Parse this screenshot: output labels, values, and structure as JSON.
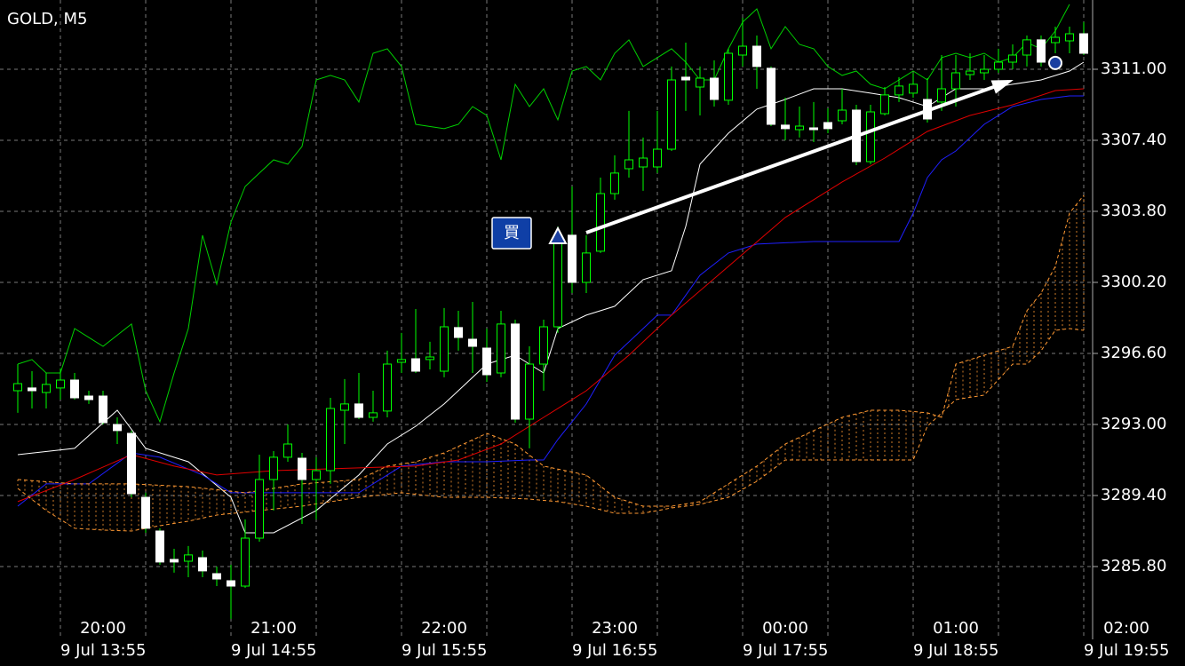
{
  "chart_data": {
    "type": "candlestick",
    "title": "GOLD, M5",
    "ylim": [
      3282.11,
      3314.51
    ],
    "yticks": [
      {
        "value": 3311.0,
        "label": "3311.00"
      },
      {
        "value": 3307.4,
        "label": "3307.40"
      },
      {
        "value": 3303.8,
        "label": "3303.80"
      },
      {
        "value": 3300.2,
        "label": "3300.20"
      },
      {
        "value": 3296.6,
        "label": "3296.60"
      },
      {
        "value": 3293.0,
        "label": "3293.00"
      },
      {
        "value": 3289.4,
        "label": "3289.40"
      },
      {
        "value": 3285.8,
        "label": "3285.80"
      }
    ],
    "xlim": [
      -1.25,
      75.625
    ],
    "xticks": [
      {
        "value": 3,
        "label": "9 Jul 13:55"
      },
      {
        "value": 9,
        "label": null
      },
      {
        "value": 15,
        "label": "9 Jul 14:55"
      },
      {
        "value": 21,
        "label": null
      },
      {
        "value": 27,
        "label": "9 Jul 15:55"
      },
      {
        "value": 33,
        "label": null
      },
      {
        "value": 39,
        "label": "9 Jul 16:55"
      },
      {
        "value": 45,
        "label": null
      },
      {
        "value": 51,
        "label": "9 Jul 17:55"
      },
      {
        "value": 57,
        "label": null
      },
      {
        "value": 63,
        "label": "9 Jul 18:55"
      },
      {
        "value": 69,
        "label": null
      },
      {
        "value": 75,
        "label": "9 Jul 19:55"
      }
    ],
    "x2ticks": [
      {
        "value": 6,
        "label": "20:00"
      },
      {
        "value": 18,
        "label": "21:00"
      },
      {
        "value": 30,
        "label": "22:00"
      },
      {
        "value": 42,
        "label": "23:00"
      },
      {
        "value": 54,
        "label": "00:00"
      },
      {
        "value": 66,
        "label": "01:00"
      },
      {
        "value": 78,
        "label": "02:00"
      }
    ],
    "grid": true,
    "up_color": "#000000",
    "down_color": "#ffffff",
    "wick_color": "#00ff00",
    "candles": {
      "open": [
        3294.71,
        3294.85,
        3294.62,
        3294.85,
        3295.25,
        3294.44,
        3294.44,
        3293.0,
        3292.55,
        3289.31,
        3287.6,
        3286.16,
        3286.07,
        3286.25,
        3285.44,
        3285.08,
        3284.81,
        3287.24,
        3290.21,
        3291.34,
        3291.29,
        3290.21,
        3290.66,
        3293.72,
        3294.04,
        3293.36,
        3293.68,
        3296.15,
        3296.33,
        3296.29,
        3295.7,
        3297.91,
        3297.32,
        3296.87,
        3295.61,
        3298.09,
        3293.27,
        3296.06,
        3297.95,
        3302.59,
        3300.2,
        3301.78,
        3304.7,
        3305.96,
        3306.05,
        3306.05,
        3306.95,
        3310.6,
        3310.1,
        3310.55,
        3309.43,
        3311.72,
        3312.17,
        3311.05,
        3308.17,
        3307.94,
        3308.03,
        3308.3,
        3308.39,
        3308.93,
        3306.32,
        3308.75,
        3309.7,
        3309.79,
        3309.47,
        3309.34,
        3310.01,
        3310.73,
        3310.82,
        3311.0,
        3311.36,
        3311.72,
        3312.49,
        3312.35,
        3312.44,
        3312.8
      ],
      "high": [
        3296.06,
        3295.7,
        3295.61,
        3295.84,
        3295.61,
        3294.71,
        3294.71,
        3293.36,
        3292.69,
        3289.54,
        3287.74,
        3286.7,
        3286.84,
        3286.61,
        3285.8,
        3285.89,
        3288.19,
        3291.47,
        3291.65,
        3293.0,
        3291.56,
        3291.34,
        3294.35,
        3295.3,
        3295.61,
        3294.71,
        3296.74,
        3297.64,
        3298.85,
        3297.19,
        3298.9,
        3298.76,
        3299.21,
        3297.86,
        3298.76,
        3298.31,
        3296.96,
        3298.31,
        3303.04,
        3305.06,
        3302.59,
        3305.51,
        3306.64,
        3308.89,
        3307.54,
        3308.89,
        3311.14,
        3312.35,
        3311.14,
        3311.45,
        3312.04,
        3313.61,
        3312.71,
        3311.14,
        3309.56,
        3309.11,
        3309.34,
        3309.02,
        3310.01,
        3309.2,
        3309.2,
        3310.1,
        3310.6,
        3310.82,
        3310.55,
        3311.72,
        3311.72,
        3311.81,
        3311.72,
        3312.04,
        3312.26,
        3312.71,
        3312.71,
        3313.16,
        3313.16,
        3313.39
      ],
      "low": [
        3293.59,
        3293.81,
        3293.81,
        3294.26,
        3294.26,
        3294.04,
        3293.0,
        3292.01,
        3289.31,
        3287.51,
        3285.89,
        3285.49,
        3285.26,
        3285.26,
        3284.81,
        3283.15,
        3284.72,
        3287.06,
        3288.64,
        3291.11,
        3287.96,
        3288.19,
        3289.99,
        3292.01,
        3293.27,
        3293.14,
        3293.36,
        3295.61,
        3295.61,
        3295.79,
        3295.39,
        3296.74,
        3295.61,
        3295.16,
        3295.39,
        3293.09,
        3291.79,
        3294.71,
        3297.64,
        3299.66,
        3299.66,
        3301.69,
        3304.39,
        3305.51,
        3304.84,
        3305.74,
        3306.86,
        3308.89,
        3308.66,
        3309.11,
        3309.2,
        3311.14,
        3310.01,
        3308.12,
        3307.4,
        3307.54,
        3307.31,
        3307.76,
        3308.21,
        3306.14,
        3306.19,
        3308.66,
        3309.34,
        3309.56,
        3308.3,
        3308.89,
        3309.11,
        3310.46,
        3310.46,
        3310.82,
        3311.0,
        3311.14,
        3311.14,
        3311.81,
        3311.81,
        3311.72
      ],
      "close": [
        3295.07,
        3294.71,
        3295.03,
        3295.25,
        3294.35,
        3294.26,
        3293.09,
        3292.69,
        3289.49,
        3287.74,
        3286.03,
        3286.03,
        3286.39,
        3285.58,
        3285.17,
        3284.81,
        3287.24,
        3290.21,
        3291.34,
        3292.01,
        3290.21,
        3290.66,
        3293.81,
        3294.04,
        3293.36,
        3293.59,
        3296.06,
        3296.29,
        3295.7,
        3296.42,
        3297.95,
        3297.41,
        3296.96,
        3295.52,
        3298.09,
        3293.27,
        3296.06,
        3297.95,
        3302.59,
        3300.2,
        3301.69,
        3304.7,
        3305.74,
        3306.41,
        3306.5,
        3306.95,
        3310.46,
        3310.46,
        3310.55,
        3309.47,
        3311.81,
        3312.17,
        3311.14,
        3308.21,
        3307.99,
        3308.12,
        3307.94,
        3307.99,
        3308.93,
        3306.32,
        3308.84,
        3309.7,
        3310.15,
        3310.24,
        3308.48,
        3310.01,
        3310.82,
        3310.91,
        3311.0,
        3311.36,
        3311.72,
        3312.49,
        3311.36,
        3312.62,
        3312.8,
        3311.81
      ]
    },
    "lines": [
      {
        "color": "#ffffff",
        "dash": false,
        "x": [
          0,
          4,
          7,
          9,
          12,
          15,
          16,
          18,
          21,
          24,
          26,
          28,
          30,
          33,
          35,
          37,
          38,
          40,
          42,
          44,
          46,
          47,
          48,
          50,
          52,
          54,
          56,
          58,
          60,
          62,
          64,
          66,
          68,
          70,
          72,
          74,
          75
        ],
        "values": [
          3291.47,
          3291.79,
          3293.72,
          3291.79,
          3291.11,
          3289.31,
          3287.51,
          3287.51,
          3288.64,
          3290.44,
          3292.01,
          3292.91,
          3294.04,
          3296.06,
          3296.51,
          3295.61,
          3297.86,
          3298.54,
          3298.99,
          3300.34,
          3300.79,
          3303.04,
          3306.19,
          3307.76,
          3308.98,
          3309.47,
          3310.01,
          3310.01,
          3309.79,
          3309.56,
          3309.11,
          3310.01,
          3310.01,
          3310.24,
          3310.46,
          3310.91,
          3311.36
        ]
      },
      {
        "color": "#1f1fff",
        "dash": false,
        "x": [
          0,
          2,
          5,
          8,
          10,
          13,
          15,
          20,
          24,
          27,
          30,
          33,
          36,
          37,
          38,
          40,
          42,
          44,
          45,
          46,
          48,
          50,
          52,
          56,
          60,
          62,
          63,
          64,
          65,
          66,
          68,
          70,
          72,
          74,
          75
        ],
        "values": [
          3288.86,
          3289.99,
          3289.99,
          3291.56,
          3291.34,
          3290.44,
          3289.54,
          3289.54,
          3289.54,
          3290.89,
          3291.11,
          3291.11,
          3291.2,
          3291.2,
          3292.24,
          3294.04,
          3296.51,
          3297.86,
          3298.54,
          3298.54,
          3300.56,
          3301.69,
          3302.14,
          3302.27,
          3302.27,
          3302.27,
          3303.71,
          3305.51,
          3306.41,
          3306.86,
          3308.21,
          3309.11,
          3309.47,
          3309.65,
          3309.65
        ]
      },
      {
        "color": "#e00000",
        "dash": false,
        "x": [
          0,
          4,
          8,
          11,
          14,
          18,
          24,
          28,
          31,
          34,
          37,
          40,
          43,
          46,
          50,
          54,
          58,
          61,
          64,
          67,
          70,
          73,
          75
        ],
        "values": [
          3289.09,
          3290.21,
          3291.47,
          3290.89,
          3290.44,
          3290.66,
          3290.8,
          3290.89,
          3291.2,
          3292.01,
          3293.36,
          3294.71,
          3296.51,
          3298.54,
          3301.01,
          3303.49,
          3305.29,
          3306.5,
          3307.85,
          3308.66,
          3309.2,
          3309.92,
          3310.01
        ]
      },
      {
        "color": "#00d000",
        "dash": false,
        "x": [
          0,
          1,
          2,
          3,
          4,
          6,
          8,
          9,
          10,
          11,
          12,
          13,
          14,
          15,
          16,
          17,
          18,
          19,
          20,
          21,
          22,
          23,
          24,
          25,
          26,
          27,
          28,
          30,
          31,
          32,
          33,
          34,
          35,
          36,
          37,
          38,
          39,
          40,
          41,
          42,
          43,
          44,
          45,
          46,
          47,
          48,
          49,
          50,
          51,
          52,
          53,
          54,
          55,
          56,
          57,
          58,
          59,
          60,
          61,
          62,
          63,
          64,
          65,
          66,
          67,
          68,
          69,
          70,
          71,
          72,
          73,
          74
        ],
        "values": [
          3296.06,
          3296.29,
          3295.61,
          3295.61,
          3297.86,
          3296.96,
          3298.09,
          3294.71,
          3293.14,
          3295.61,
          3297.86,
          3302.59,
          3300.11,
          3303.26,
          3305.06,
          3305.74,
          3306.41,
          3306.19,
          3307.09,
          3310.46,
          3310.69,
          3310.46,
          3309.34,
          3311.81,
          3312.04,
          3311.14,
          3308.21,
          3307.99,
          3308.21,
          3309.11,
          3308.66,
          3306.41,
          3310.24,
          3309.11,
          3310.01,
          3308.44,
          3310.91,
          3311.14,
          3310.46,
          3311.81,
          3312.49,
          3311.14,
          3311.59,
          3312.04,
          3311.36,
          3310.46,
          3310.46,
          3312.04,
          3313.39,
          3314.06,
          3312.04,
          3313.16,
          3312.26,
          3312.04,
          3311.14,
          3310.69,
          3310.91,
          3310.24,
          3310.01,
          3310.46,
          3310.91,
          3310.46,
          3311.59,
          3311.81,
          3311.59,
          3311.81,
          3311.36,
          3311.59,
          3312.35,
          3312.04,
          3312.94,
          3314.29
        ]
      },
      {
        "color": "#ff9933",
        "dash": true,
        "x": [
          0,
          4,
          8,
          12,
          16,
          20,
          24,
          26,
          28,
          30,
          33,
          35,
          37,
          40,
          42,
          44,
          46,
          48,
          50,
          52,
          54,
          56,
          58,
          60,
          62,
          64,
          65,
          66,
          68,
          70,
          71,
          72,
          73,
          74,
          75
        ],
        "values": [
          3290.21,
          3289.99,
          3289.99,
          3289.85,
          3289.54,
          3289.99,
          3290.21,
          3290.89,
          3291.11,
          3291.56,
          3292.55,
          3292.01,
          3290.89,
          3290.44,
          3289.31,
          3288.86,
          3288.86,
          3289.09,
          3289.99,
          3290.89,
          3292.01,
          3292.69,
          3293.36,
          3293.72,
          3293.72,
          3293.59,
          3293.36,
          3296.06,
          3296.51,
          3296.96,
          3298.76,
          3299.66,
          3301.01,
          3303.71,
          3304.61
        ]
      },
      {
        "color": "#ff9933",
        "dash": true,
        "x": [
          0,
          2,
          4,
          6,
          8,
          10,
          12,
          14,
          17,
          20,
          24,
          27,
          30,
          33,
          36,
          38,
          40,
          42,
          44,
          46,
          48,
          50,
          52,
          54,
          56,
          58,
          60,
          62,
          63,
          64,
          66,
          68,
          70,
          71,
          72,
          73,
          74,
          75
        ],
        "values": [
          3289.76,
          3288.64,
          3287.74,
          3287.65,
          3287.6,
          3287.87,
          3288.1,
          3288.41,
          3288.64,
          3288.86,
          3289.31,
          3289.54,
          3289.31,
          3289.31,
          3289.22,
          3289.09,
          3288.86,
          3288.5,
          3288.5,
          3288.77,
          3288.95,
          3289.31,
          3290.12,
          3291.2,
          3291.2,
          3291.2,
          3291.2,
          3291.2,
          3291.2,
          3292.91,
          3294.26,
          3294.49,
          3296.06,
          3296.06,
          3296.74,
          3297.77,
          3297.86,
          3297.77
        ]
      }
    ],
    "cloud_color": "#ff9933",
    "annotations": {
      "buy_label": "買",
      "entry": {
        "x": 38,
        "y": 3302.54
      },
      "arrow": {
        "x": [
          40,
          69.7
        ],
        "y": [
          3302.72,
          3310.37
        ]
      },
      "marker": {
        "x": 73,
        "y": 3311.32
      }
    }
  }
}
